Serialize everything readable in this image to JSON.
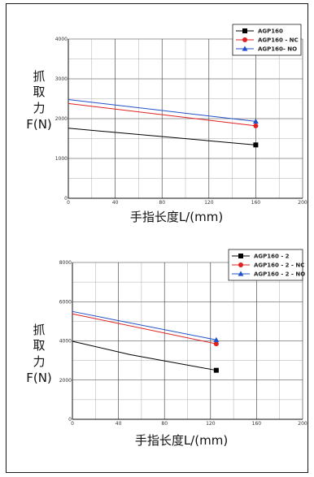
{
  "chart_data": [
    {
      "type": "line",
      "ylabel": [
        "抓",
        "取",
        "力",
        "F(N)"
      ],
      "xlabel": "手指长度L/(mm)",
      "xlim": [
        0,
        200
      ],
      "ylim": [
        0,
        4000
      ],
      "xticks": [
        0,
        40,
        80,
        120,
        160,
        200
      ],
      "yticks": [
        0,
        1000,
        2000,
        3000,
        4000
      ],
      "tick_labels_x": [
        "0",
        "40",
        "80",
        "120",
        "160",
        "200"
      ],
      "tick_labels_y": [
        "0",
        "1000",
        "2000",
        "3000",
        "4000"
      ],
      "grid": true,
      "legend": "top-right",
      "series": [
        {
          "name": "AGP160",
          "color": "#000000",
          "marker": "square",
          "x": [
            0,
            160
          ],
          "y": [
            1760,
            1340
          ]
        },
        {
          "name": "AGP160 - NC",
          "color": "#e02020",
          "marker": "circle",
          "x": [
            0,
            160
          ],
          "y": [
            2380,
            1820
          ]
        },
        {
          "name": "AGP160- NO",
          "color": "#2050c8",
          "marker": "triangle",
          "x": [
            0,
            160
          ],
          "y": [
            2480,
            1930
          ]
        }
      ]
    },
    {
      "type": "line",
      "ylabel": [
        "抓",
        "取",
        "力",
        "F(N)"
      ],
      "xlabel": "手指长度L/(mm)",
      "xlim": [
        0,
        200
      ],
      "ylim": [
        0,
        8000
      ],
      "xticks": [
        0,
        40,
        80,
        120,
        160,
        200
      ],
      "yticks": [
        0,
        2000,
        4000,
        6000,
        8000
      ],
      "tick_labels_x": [
        "0",
        "40",
        "80",
        "120",
        "160",
        "200"
      ],
      "tick_labels_y": [
        "0",
        "2000",
        "4000",
        "6000",
        "8000"
      ],
      "grid": true,
      "legend": "top-right",
      "series": [
        {
          "name": "AGP160 - 2",
          "color": "#000000",
          "marker": "square",
          "x": [
            0,
            50,
            125
          ],
          "y": [
            3980,
            3300,
            2500
          ]
        },
        {
          "name": "AGP160 - 2 - NC",
          "color": "#e02020",
          "marker": "circle",
          "x": [
            0,
            125
          ],
          "y": [
            5380,
            3850
          ]
        },
        {
          "name": "AGP160 - 2 - NO",
          "color": "#2050c8",
          "marker": "triangle",
          "x": [
            0,
            125
          ],
          "y": [
            5500,
            4050
          ]
        }
      ]
    }
  ]
}
